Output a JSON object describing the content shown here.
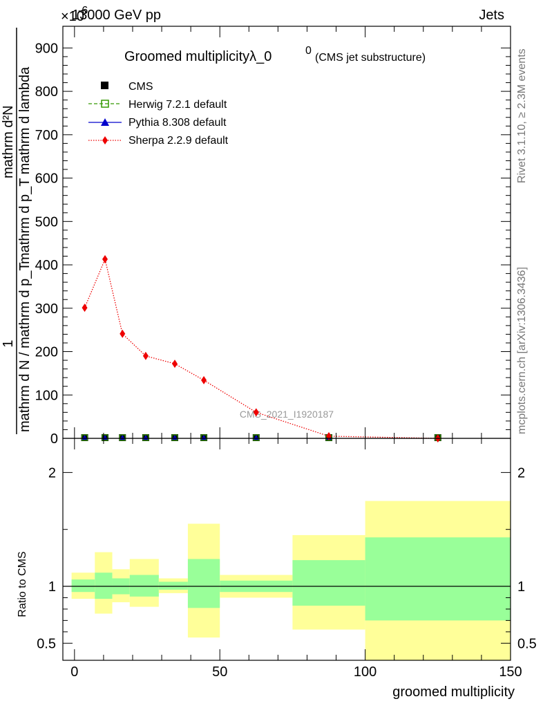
{
  "header": {
    "energy": "13000 GeV pp",
    "process": "Jets",
    "exponent_marker": "×10",
    "exponent_power": "-6"
  },
  "side_labels": {
    "rivet": "Rivet 3.1.10, ≥ 2.3M events",
    "mcplots": "mcplots.cern.ch [arXiv:1306.3436]"
  },
  "title": {
    "main": "Groomed multiplicityλ_0",
    "superscript": "0",
    "sub": "(CMS jet substructure)"
  },
  "watermark": "CMS_2021_I1920187",
  "colors": {
    "cms": "#000000",
    "herwig": "#339900",
    "pythia": "#0000cc",
    "sherpa": "#ee0000",
    "band_inner": "#99ff99",
    "band_outer": "#ffff99"
  },
  "legend": [
    {
      "label": "CMS",
      "marker": "filled-square",
      "color": "#000000"
    },
    {
      "label": "Herwig 7.2.1 default",
      "marker": "open-square-dashed",
      "color": "#339900"
    },
    {
      "label": "Pythia 8.308 default",
      "marker": "triangle-solid",
      "color": "#0000cc"
    },
    {
      "label": "Sherpa 2.2.9 default",
      "marker": "diamond-dotted",
      "color": "#ee0000"
    }
  ],
  "main_ylabel": {
    "numerator": "mathrm d²N",
    "denominator": "mathrm d p_T mathrm d lambda",
    "prefactor_num": "1",
    "prefactor_den": "mathrm d N / mathrm d p_T",
    "sub_T": "T"
  },
  "ratio_ylabel": "Ratio to CMS",
  "xlabel": "groomed multiplicity",
  "chart_data": {
    "type": "line",
    "title": "Groomed multiplicityλ_0^0 (CMS jet substructure)",
    "xlabel": "groomed multiplicity",
    "xlim": [
      -4,
      150
    ],
    "main": {
      "ylim": [
        0,
        950
      ],
      "yticks": [
        0,
        100,
        200,
        300,
        400,
        500,
        600,
        700,
        800,
        900
      ],
      "series": [
        {
          "name": "CMS",
          "x": [
            3.5,
            10.5,
            16.5,
            24.5,
            34.5,
            44.5,
            62.5,
            87.5,
            125
          ],
          "y": [
            0,
            0,
            0,
            0,
            0,
            0,
            0,
            0,
            0
          ]
        },
        {
          "name": "Herwig 7.2.1 default",
          "x": [
            3.5,
            10.5,
            16.5,
            24.5,
            34.5,
            44.5,
            62.5,
            87.5,
            125
          ],
          "y": [
            0,
            0,
            0,
            0,
            0,
            0,
            0,
            0,
            0
          ]
        },
        {
          "name": "Pythia 8.308 default",
          "x": [
            3.5,
            10.5,
            16.5,
            24.5,
            34.5,
            44.5,
            62.5,
            87.5,
            125
          ],
          "y": [
            0,
            0,
            0,
            0,
            0,
            0,
            0,
            0,
            0
          ]
        },
        {
          "name": "Sherpa 2.2.9 default",
          "x": [
            3.5,
            10.5,
            16.5,
            24.5,
            34.5,
            44.5,
            62.5,
            87.5,
            125
          ],
          "y": [
            301,
            413,
            241,
            190,
            172,
            134,
            60,
            5,
            0
          ]
        }
      ]
    },
    "ratio": {
      "ylim": [
        0.35,
        2.3
      ],
      "yticks": [
        0.5,
        1,
        2
      ],
      "ytick_labels": [
        "0.5",
        "1",
        "2"
      ],
      "bins": [
        {
          "x0": -1,
          "x1": 7,
          "inner": [
            0.95,
            1.06
          ],
          "outer": [
            0.89,
            1.12
          ]
        },
        {
          "x0": 7,
          "x1": 13,
          "inner": [
            0.89,
            1.12
          ],
          "outer": [
            0.76,
            1.3
          ]
        },
        {
          "x0": 13,
          "x1": 19,
          "inner": [
            0.93,
            1.07
          ],
          "outer": [
            0.86,
            1.15
          ]
        },
        {
          "x0": 19,
          "x1": 29,
          "inner": [
            0.91,
            1.1
          ],
          "outer": [
            0.82,
            1.24
          ]
        },
        {
          "x0": 29,
          "x1": 39,
          "inner": [
            0.97,
            1.04
          ],
          "outer": [
            0.94,
            1.07
          ]
        },
        {
          "x0": 39,
          "x1": 50,
          "inner": [
            0.81,
            1.24
          ],
          "outer": [
            0.55,
            1.55
          ]
        },
        {
          "x0": 50,
          "x1": 75,
          "inner": [
            0.95,
            1.05
          ],
          "outer": [
            0.9,
            1.1
          ]
        },
        {
          "x0": 75,
          "x1": 100,
          "inner": [
            0.83,
            1.23
          ],
          "outer": [
            0.62,
            1.45
          ]
        },
        {
          "x0": 100,
          "x1": 150,
          "inner": [
            0.7,
            1.43
          ],
          "outer": [
            0.3,
            1.75
          ]
        }
      ],
      "reference_line": 1
    },
    "xticks": [
      0,
      50,
      100,
      150
    ]
  }
}
